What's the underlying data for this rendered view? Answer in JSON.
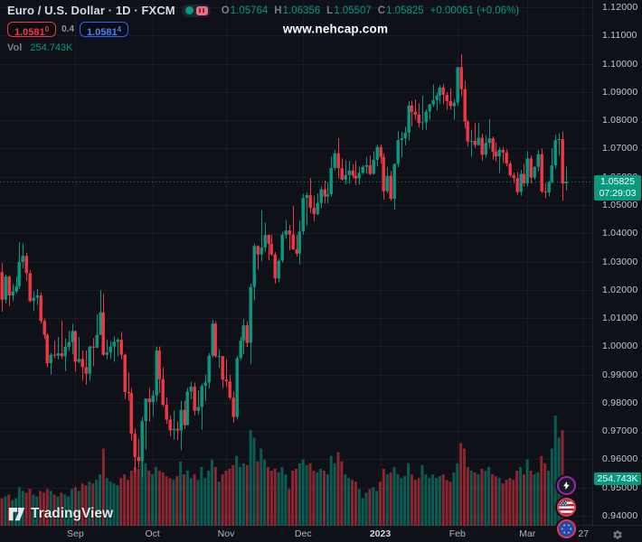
{
  "header": {
    "symbol_title": "Euro / U.S. Dollar · 1D · FXCM",
    "ohlc": {
      "o_label": "O",
      "o": "1.05764",
      "h_label": "H",
      "h": "1.06356",
      "l_label": "L",
      "l": "1.05507",
      "c_label": "C",
      "c": "1.05825",
      "change": "+0.00061 (+0.06%)"
    },
    "bid": "1.0581",
    "bid_sup": "0",
    "spread": "0.4",
    "ask": "1.0581",
    "ask_sup": "4",
    "vol_label": "Vol",
    "vol_value": "254.743K"
  },
  "watermark": "www.nehcap.com",
  "price_label": {
    "price": "1.05825",
    "countdown": "07:29:03"
  },
  "volume_axis_label": "254.743K",
  "logo_text": "TradingView",
  "colors": {
    "background": "#0e1118",
    "up": "#089981",
    "down": "#f23645",
    "up_volume": "rgba(8,153,129,0.55)",
    "down_volume": "rgba(242,54,69,0.55)",
    "label_bg": "#089981",
    "bid": "#f23645",
    "ask": "#2962ff",
    "grid": "rgba(170,180,210,0.07)",
    "market_open_dot": "#089981"
  },
  "fab_buttons": [
    {
      "name": "lightning-event",
      "ring": "#9c27b0"
    },
    {
      "name": "us-economic-event",
      "ring": "#f23645"
    },
    {
      "name": "eu-economic-event",
      "ring": "#f23645"
    }
  ],
  "chart_data": {
    "type": "candlestick",
    "title": "Euro / U.S. Dollar 1D FXCM",
    "y_axis_ticks": [
      "1.12000",
      "1.11000",
      "1.10000",
      "1.09000",
      "1.08000",
      "1.07000",
      "1.06000",
      "1.05000",
      "1.04000",
      "1.03000",
      "1.02000",
      "1.01000",
      "1.00000",
      "0.99000",
      "0.98000",
      "0.97000",
      "0.96000",
      "0.95000",
      "0.94000"
    ],
    "y_range": {
      "max": 1.12,
      "min": 0.94
    },
    "x_ticks": [
      {
        "label": "Sep",
        "day": 21,
        "em": false
      },
      {
        "label": "Oct",
        "day": 43,
        "em": false
      },
      {
        "label": "Nov",
        "day": 64,
        "em": false
      },
      {
        "label": "Dec",
        "day": 86,
        "em": false
      },
      {
        "label": "2023",
        "day": 108,
        "em": true
      },
      {
        "label": "Feb",
        "day": 130,
        "em": false
      },
      {
        "label": "Mar",
        "day": 150,
        "em": false
      },
      {
        "label": "27",
        "day": 166,
        "em": false
      }
    ],
    "last_price": 1.05825,
    "last_volume_k": 254.743,
    "legend": "candles are [open, high, low, close, volume_k]",
    "candles": [
      [
        1.0262,
        1.0294,
        1.0123,
        1.0165,
        150
      ],
      [
        1.0165,
        1.0254,
        1.0152,
        1.0247,
        160
      ],
      [
        1.0247,
        1.0251,
        1.0142,
        1.018,
        170
      ],
      [
        1.018,
        1.0221,
        1.016,
        1.0194,
        140
      ],
      [
        1.0194,
        1.0248,
        1.0187,
        1.0213,
        150
      ],
      [
        1.0213,
        1.0368,
        1.0203,
        1.0298,
        210
      ],
      [
        1.0298,
        1.0364,
        1.0276,
        1.032,
        190
      ],
      [
        1.032,
        1.0331,
        1.0232,
        1.0259,
        180
      ],
      [
        1.0259,
        1.0268,
        1.0154,
        1.016,
        200
      ],
      [
        1.016,
        1.0195,
        1.0124,
        1.0172,
        170
      ],
      [
        1.0172,
        1.0203,
        1.0147,
        1.018,
        160
      ],
      [
        1.018,
        1.0191,
        1.008,
        1.009,
        190
      ],
      [
        1.009,
        1.0098,
        1.0026,
        1.004,
        180
      ],
      [
        1.004,
        1.0046,
        0.9926,
        0.994,
        200
      ],
      [
        0.994,
        0.9976,
        0.99,
        0.997,
        190
      ],
      [
        0.997,
        1.0019,
        0.9958,
        0.9967,
        170
      ],
      [
        0.9967,
        1.0033,
        0.9954,
        0.9975,
        160
      ],
      [
        0.9975,
        1.009,
        0.9955,
        0.9965,
        180
      ],
      [
        0.9965,
        1.0027,
        0.9912,
        0.9998,
        170
      ],
      [
        0.9998,
        1.0055,
        0.9983,
        1.0015,
        160
      ],
      [
        1.0015,
        1.0079,
        0.9972,
        1.0054,
        200
      ],
      [
        1.0054,
        1.0055,
        0.991,
        0.9945,
        210
      ],
      [
        0.9945,
        1.0033,
        0.994,
        0.9955,
        190
      ],
      [
        0.9955,
        0.9985,
        0.9878,
        0.9926,
        230
      ],
      [
        0.9926,
        0.9986,
        0.9864,
        0.9903,
        220
      ],
      [
        0.9903,
        1.0002,
        0.9877,
        0.9999,
        240
      ],
      [
        0.9999,
        1.0029,
        0.993,
        0.9995,
        230
      ],
      [
        0.9995,
        1.0113,
        0.9993,
        1.004,
        250
      ],
      [
        1.004,
        1.0198,
        1.004,
        1.012,
        280
      ],
      [
        1.012,
        1.0187,
        0.9966,
        0.997,
        420
      ],
      [
        0.997,
        1.0023,
        0.9955,
        0.9978,
        260
      ],
      [
        0.9978,
        1.0018,
        0.9955,
        0.9999,
        240
      ],
      [
        0.9999,
        1.0036,
        0.9945,
        1.0016,
        230
      ],
      [
        1.0016,
        1.0029,
        0.9964,
        1.0023,
        220
      ],
      [
        1.0023,
        1.0051,
        0.9954,
        0.997,
        260
      ],
      [
        0.997,
        0.9974,
        0.9813,
        0.9838,
        280
      ],
      [
        0.9838,
        0.9907,
        0.9807,
        0.9835,
        250
      ],
      [
        0.9835,
        0.9852,
        0.9667,
        0.969,
        300
      ],
      [
        0.969,
        0.9709,
        0.9554,
        0.9608,
        320
      ],
      [
        0.9608,
        0.9672,
        0.957,
        0.9594,
        310
      ],
      [
        0.9594,
        0.975,
        0.9536,
        0.9735,
        400
      ],
      [
        0.9735,
        0.9816,
        0.9634,
        0.9815,
        340
      ],
      [
        0.9815,
        0.9853,
        0.9733,
        0.9802,
        300
      ],
      [
        0.9802,
        0.9844,
        0.9751,
        0.9826,
        280
      ],
      [
        0.9826,
        0.9999,
        0.9804,
        0.9985,
        320
      ],
      [
        0.9985,
        0.9999,
        0.9835,
        0.9884,
        300
      ],
      [
        0.9884,
        0.9926,
        0.9787,
        0.9793,
        290
      ],
      [
        0.9793,
        0.9819,
        0.9726,
        0.974,
        270
      ],
      [
        0.974,
        0.9756,
        0.9681,
        0.9703,
        260
      ],
      [
        0.9703,
        0.9773,
        0.967,
        0.9708,
        250
      ],
      [
        0.9708,
        0.9735,
        0.9668,
        0.9702,
        270
      ],
      [
        0.9702,
        0.9807,
        0.9632,
        0.9775,
        350
      ],
      [
        0.9775,
        0.9808,
        0.9707,
        0.9721,
        280
      ],
      [
        0.9721,
        0.9853,
        0.9721,
        0.984,
        300
      ],
      [
        0.984,
        0.9875,
        0.9813,
        0.9857,
        260
      ],
      [
        0.9857,
        0.9872,
        0.9756,
        0.9772,
        280
      ],
      [
        0.9772,
        0.9845,
        0.9757,
        0.9785,
        250
      ],
      [
        0.9785,
        0.9868,
        0.9705,
        0.986,
        320
      ],
      [
        0.986,
        0.9899,
        0.9807,
        0.9872,
        260
      ],
      [
        0.9872,
        0.9976,
        0.985,
        0.9967,
        300
      ],
      [
        0.9967,
        1.0094,
        0.996,
        1.008,
        360
      ],
      [
        1.008,
        1.0089,
        0.9959,
        0.9965,
        320
      ],
      [
        0.9965,
        0.999,
        0.9924,
        0.9965,
        240
      ],
      [
        0.9965,
        0.9965,
        0.9852,
        0.9882,
        280
      ],
      [
        0.9882,
        0.9953,
        0.9855,
        0.9876,
        300
      ],
      [
        0.9876,
        0.9899,
        0.9812,
        0.9818,
        310
      ],
      [
        0.9818,
        0.984,
        0.973,
        0.975,
        330
      ],
      [
        0.975,
        0.9966,
        0.9741,
        0.9958,
        380
      ],
      [
        0.9958,
        1.0034,
        0.9951,
        1.002,
        320
      ],
      [
        1.002,
        1.0096,
        0.9972,
        1.0074,
        340
      ],
      [
        1.0074,
        1.0089,
        0.9998,
        1.0012,
        330
      ],
      [
        1.0012,
        1.0222,
        0.9936,
        1.021,
        520
      ],
      [
        1.021,
        1.0364,
        1.0163,
        1.0355,
        480
      ],
      [
        1.0355,
        1.0357,
        1.0271,
        1.0325,
        350
      ],
      [
        1.0325,
        1.0481,
        1.03,
        1.035,
        420
      ],
      [
        1.035,
        1.0438,
        1.0334,
        1.0394,
        360
      ],
      [
        1.0394,
        1.0396,
        1.0305,
        1.0363,
        320
      ],
      [
        1.0363,
        1.0395,
        1.032,
        1.0325,
        300
      ],
      [
        1.0325,
        1.0333,
        1.0222,
        1.024,
        310
      ],
      [
        1.024,
        1.0307,
        1.0226,
        1.0303,
        290
      ],
      [
        1.0303,
        1.0405,
        1.0296,
        1.0395,
        320
      ],
      [
        1.0395,
        1.0448,
        1.0382,
        1.041,
        280
      ],
      [
        1.041,
        1.0429,
        1.034,
        1.0396,
        200
      ],
      [
        1.0396,
        1.0497,
        1.0341,
        1.0343,
        300
      ],
      [
        1.0343,
        1.0394,
        1.0318,
        1.0328,
        310
      ],
      [
        1.0328,
        1.0444,
        1.029,
        1.0406,
        340
      ],
      [
        1.0406,
        1.0539,
        1.0395,
        1.0525,
        360
      ],
      [
        1.0525,
        1.0545,
        1.0428,
        1.0535,
        330
      ],
      [
        1.0535,
        1.0595,
        1.0472,
        1.049,
        340
      ],
      [
        1.049,
        1.0533,
        1.0442,
        1.0468,
        300
      ],
      [
        1.0468,
        1.0541,
        1.0465,
        1.0507,
        290
      ],
      [
        1.0507,
        1.0566,
        1.049,
        1.0556,
        310
      ],
      [
        1.0556,
        1.0587,
        1.0505,
        1.053,
        300
      ],
      [
        1.053,
        1.058,
        1.0506,
        1.0538,
        280
      ],
      [
        1.0538,
        1.0673,
        1.053,
        1.0631,
        380
      ],
      [
        1.0631,
        1.0695,
        1.0622,
        1.0683,
        340
      ],
      [
        1.0683,
        1.0737,
        1.0594,
        1.063,
        400
      ],
      [
        1.063,
        1.0665,
        1.0587,
        1.059,
        350
      ],
      [
        1.059,
        1.0658,
        1.0573,
        1.0606,
        280
      ],
      [
        1.0606,
        1.0656,
        1.0575,
        1.0622,
        260
      ],
      [
        1.0622,
        1.0644,
        1.0594,
        1.0604,
        250
      ],
      [
        1.0604,
        1.0657,
        1.0571,
        1.0594,
        240
      ],
      [
        1.0594,
        1.0636,
        1.0572,
        1.0614,
        200
      ],
      [
        1.0614,
        1.064,
        1.0608,
        1.0635,
        150
      ],
      [
        1.0635,
        1.067,
        1.0611,
        1.0641,
        180
      ],
      [
        1.0641,
        1.0675,
        1.0605,
        1.061,
        200
      ],
      [
        1.061,
        1.069,
        1.0609,
        1.066,
        210
      ],
      [
        1.066,
        1.0712,
        1.0637,
        1.0705,
        190
      ],
      [
        1.0705,
        1.0714,
        1.0647,
        1.067,
        240
      ],
      [
        1.067,
        1.0683,
        1.0519,
        1.0549,
        310
      ],
      [
        1.0549,
        1.0635,
        1.0542,
        1.0603,
        280
      ],
      [
        1.0603,
        1.0621,
        1.0515,
        1.0522,
        290
      ],
      [
        1.0522,
        1.0648,
        1.0483,
        1.0645,
        320
      ],
      [
        1.0645,
        1.0761,
        1.0634,
        1.073,
        280
      ],
      [
        1.073,
        1.0758,
        1.0669,
        1.0736,
        260
      ],
      [
        1.0736,
        1.0776,
        1.0711,
        1.0756,
        270
      ],
      [
        1.0756,
        1.0868,
        1.0729,
        1.0852,
        340
      ],
      [
        1.0852,
        1.087,
        1.0778,
        1.083,
        280
      ],
      [
        1.083,
        1.0874,
        1.0802,
        1.082,
        250
      ],
      [
        1.082,
        1.086,
        1.0775,
        1.079,
        260
      ],
      [
        1.079,
        1.0887,
        1.0766,
        1.0793,
        330
      ],
      [
        1.0793,
        1.0838,
        1.0766,
        1.0831,
        280
      ],
      [
        1.0831,
        1.0858,
        1.0802,
        1.0856,
        260
      ],
      [
        1.0856,
        1.0927,
        1.0848,
        1.0871,
        280
      ],
      [
        1.0871,
        1.0898,
        1.0835,
        1.0887,
        260
      ],
      [
        1.0887,
        1.0925,
        1.0858,
        1.0916,
        270
      ],
      [
        1.0916,
        1.0929,
        1.0857,
        1.089,
        280
      ],
      [
        1.089,
        1.0899,
        1.0837,
        1.0868,
        250
      ],
      [
        1.0868,
        1.0913,
        1.0838,
        1.085,
        240
      ],
      [
        1.085,
        1.0874,
        1.0802,
        1.0863,
        290
      ],
      [
        1.0863,
        1.0989,
        1.0852,
        1.0988,
        340
      ],
      [
        1.0988,
        1.1033,
        1.0885,
        1.091,
        450
      ],
      [
        1.091,
        1.094,
        1.0771,
        1.0795,
        420
      ],
      [
        1.0795,
        1.08,
        1.0708,
        1.0725,
        320
      ],
      [
        1.0725,
        1.0766,
        1.067,
        1.0727,
        300
      ],
      [
        1.0727,
        1.079,
        1.0702,
        1.0712,
        290
      ],
      [
        1.0712,
        1.0791,
        1.0711,
        1.0738,
        280
      ],
      [
        1.0738,
        1.0752,
        1.0656,
        1.0678,
        310
      ],
      [
        1.0678,
        1.0747,
        1.0668,
        1.072,
        300
      ],
      [
        1.072,
        1.0804,
        1.07,
        1.0736,
        320
      ],
      [
        1.0736,
        1.0743,
        1.066,
        1.0688,
        280
      ],
      [
        1.0688,
        1.0722,
        1.0655,
        1.0672,
        270
      ],
      [
        1.0672,
        1.0704,
        1.0613,
        1.0695,
        260
      ],
      [
        1.0695,
        1.0705,
        1.0648,
        1.0686,
        230
      ],
      [
        1.0686,
        1.0697,
        1.0636,
        1.0647,
        250
      ],
      [
        1.0647,
        1.0655,
        1.0598,
        1.0605,
        260
      ],
      [
        1.0605,
        1.0615,
        1.0577,
        1.0595,
        250
      ],
      [
        1.0595,
        1.0617,
        1.0536,
        1.0546,
        300
      ],
      [
        1.0546,
        1.0625,
        1.0533,
        1.061,
        320
      ],
      [
        1.061,
        1.0645,
        1.0565,
        1.0577,
        280
      ],
      [
        1.0577,
        1.0691,
        1.0566,
        1.0665,
        360
      ],
      [
        1.0665,
        1.0675,
        1.0577,
        1.0597,
        300
      ],
      [
        1.0597,
        1.0637,
        1.059,
        1.0635,
        280
      ],
      [
        1.0635,
        1.0694,
        1.062,
        1.068,
        290
      ],
      [
        1.068,
        1.07,
        1.0542,
        1.0548,
        380
      ],
      [
        1.0548,
        1.0577,
        1.0524,
        1.0545,
        340
      ],
      [
        1.0545,
        1.0585,
        1.0531,
        1.0581,
        300
      ],
      [
        1.0581,
        1.0701,
        1.0577,
        1.064,
        420
      ],
      [
        1.064,
        1.0749,
        1.0629,
        1.073,
        600
      ],
      [
        1.073,
        1.0754,
        1.0674,
        1.0733,
        480
      ],
      [
        1.0733,
        1.076,
        1.0516,
        1.0576,
        520
      ],
      [
        1.05764,
        1.06356,
        1.05507,
        1.05825,
        254.743
      ]
    ]
  }
}
